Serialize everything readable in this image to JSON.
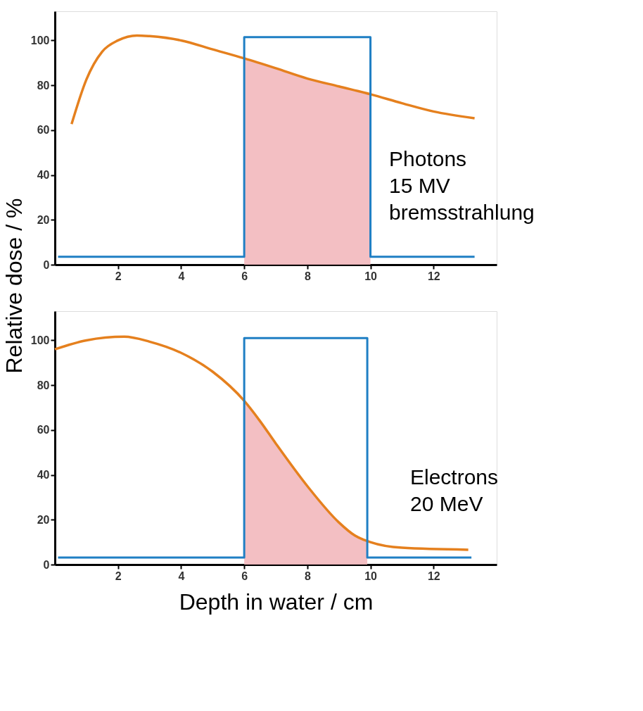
{
  "chart_data": [
    {
      "type": "line",
      "ylabel": "Relative dose  /  %",
      "xlim": [
        0,
        14
      ],
      "ylim": [
        0,
        113
      ],
      "xticks": [
        2,
        4,
        6,
        8,
        10,
        12
      ],
      "yticks": [
        0,
        20,
        40,
        60,
        80,
        100
      ],
      "annotations": [
        "Photons\n15 MV\nbremsstrahlung"
      ],
      "series": [
        {
          "type": "area",
          "color": "#f2b8bd",
          "x": [
            6,
            7,
            8,
            9,
            10
          ],
          "values": [
            92,
            87.6,
            83,
            79.5,
            76
          ]
        },
        {
          "color": "#e5801e",
          "x": [
            0.53,
            1,
            1.5,
            2,
            2.6,
            3,
            4,
            5,
            6,
            7,
            8,
            9,
            10,
            11,
            12,
            13.3
          ],
          "values": [
            62.7,
            82.6,
            95,
            100,
            102.2,
            101.9,
            100,
            96,
            92,
            87.6,
            83,
            79.5,
            76,
            72,
            68.3,
            65.3
          ]
        },
        {
          "type": "step",
          "color": "#1f7fc4",
          "x": [
            0.1,
            6,
            10,
            13.3
          ],
          "values": [
            3.5,
            101.5,
            3.5,
            3.5
          ]
        }
      ]
    },
    {
      "type": "line",
      "xlabel": "Depth in water  /  cm",
      "xlim": [
        0,
        14
      ],
      "ylim": [
        0,
        113
      ],
      "xticks": [
        2,
        4,
        6,
        8,
        10,
        12
      ],
      "yticks": [
        0,
        20,
        40,
        60,
        80,
        100
      ],
      "annotations": [
        "Electrons\n20 MeV"
      ],
      "series": [
        {
          "type": "area",
          "color": "#f2b8bd",
          "x": [
            6,
            6.5,
            7,
            8,
            9,
            9.5,
            9.9
          ],
          "values": [
            73,
            64,
            54,
            35,
            18.8,
            13,
            10.3
          ]
        },
        {
          "color": "#e5801e",
          "x": [
            0,
            1,
            2.2,
            3,
            4,
            5,
            6,
            6.5,
            7,
            8,
            9,
            9.5,
            10,
            11,
            13.1
          ],
          "values": [
            96,
            100,
            101.6,
            99.4,
            94.4,
            86,
            73,
            64,
            54,
            35,
            18.8,
            13,
            10,
            7.5,
            6.6
          ]
        },
        {
          "type": "step",
          "color": "#1f7fc4",
          "x": [
            0.1,
            6,
            9.9,
            13.2
          ],
          "values": [
            3.1,
            101,
            3.1,
            3.1
          ]
        }
      ]
    }
  ]
}
